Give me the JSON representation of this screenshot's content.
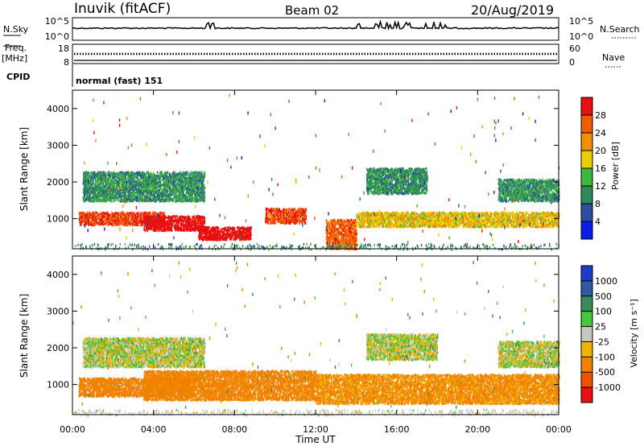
{
  "header": {
    "station": "Inuvik (fitACF)",
    "beam": "Beam 02",
    "date": "20/Aug/2019"
  },
  "top_panels": {
    "nsky_label": "N.Sky",
    "nsky_ticks": [
      "10^5",
      "10^0"
    ],
    "nsearch_label": "N.Search",
    "nsearch_ticks": [
      "10^5",
      "10^0"
    ],
    "freq_label": "Freq.",
    "freq_unit": "[MHz]",
    "freq_ticks": [
      "18",
      "8"
    ],
    "nave_label": "Nave",
    "nave_ticks": [
      "60",
      "0"
    ],
    "cpid_label": "CPID",
    "cpid_value": "normal (fast) 151"
  },
  "axes": {
    "ylabel": "Slant Range [km]",
    "xlabel": "Time UT",
    "y_ticks": [
      "1000",
      "2000",
      "3000",
      "4000"
    ],
    "x_ticks": [
      "00:00",
      "04:00",
      "08:00",
      "12:00",
      "16:00",
      "20:00",
      "00:00"
    ]
  },
  "power_colorbar": {
    "label": "Power [dB]",
    "ticks": [
      "4",
      "8",
      "12",
      "16",
      "20",
      "24",
      "28"
    ],
    "colors": [
      "#0a1ce8",
      "#2f4da0",
      "#2f8a5a",
      "#3cb83c",
      "#e8d000",
      "#f09000",
      "#f05a00",
      "#e81010"
    ]
  },
  "velocity_colorbar": {
    "label": "Velocity [m s⁻¹]",
    "ticks": [
      "1000",
      "500",
      "100",
      "25",
      "-25",
      "-100",
      "-500",
      "-1000"
    ],
    "colors": [
      "#1e3cc8",
      "#2f5aa0",
      "#3a8a5a",
      "#46c83c",
      "#c8c8be",
      "#f0b400",
      "#f08200",
      "#f05000",
      "#e81010"
    ]
  },
  "chart_data": [
    {
      "type": "heatmap",
      "title": "Power",
      "xlabel": "Time UT",
      "ylabel": "Slant Range [km]",
      "xlim": [
        0,
        24
      ],
      "ylim": [
        180,
        4500
      ],
      "colorbar": {
        "label": "Power [dB]",
        "range": [
          0,
          30
        ]
      },
      "features": [
        {
          "t": [
            0.3,
            4.5
          ],
          "range_km": [
            850,
            1200
          ],
          "power_db": 26
        },
        {
          "t": [
            3.5,
            6.5
          ],
          "range_km": [
            700,
            1100
          ],
          "power_db": 30
        },
        {
          "t": [
            6.2,
            8.8
          ],
          "range_km": [
            450,
            800
          ],
          "power_db": 30
        },
        {
          "t": [
            9.5,
            11.5
          ],
          "range_km": [
            900,
            1300
          ],
          "power_db": 26
        },
        {
          "t": [
            12.5,
            14.0
          ],
          "range_km": [
            200,
            1000
          ],
          "power_db": 24
        },
        {
          "t": [
            14.0,
            24.0
          ],
          "range_km": [
            800,
            1200
          ],
          "power_db": 18
        },
        {
          "t": [
            0.5,
            6.5
          ],
          "range_km": [
            1500,
            2300
          ],
          "power_db": 10
        },
        {
          "t": [
            14.5,
            17.5
          ],
          "range_km": [
            1700,
            2400
          ],
          "power_db": 10
        },
        {
          "t": [
            21.0,
            24.0
          ],
          "range_km": [
            1500,
            2100
          ],
          "power_db": 10
        }
      ]
    },
    {
      "type": "heatmap",
      "title": "Velocity",
      "xlabel": "Time UT",
      "ylabel": "Slant Range [km]",
      "xlim": [
        0,
        24
      ],
      "ylim": [
        180,
        4500
      ],
      "colorbar": {
        "label": "Velocity [m s⁻¹]",
        "range": [
          -1000,
          1000
        ]
      },
      "features": [
        {
          "t": [
            0.3,
            6.0
          ],
          "range_km": [
            700,
            1200
          ],
          "velocity": -300
        },
        {
          "t": [
            3.5,
            12.0
          ],
          "range_km": [
            600,
            1400
          ],
          "velocity": -200
        },
        {
          "t": [
            12.0,
            24.0
          ],
          "range_km": [
            500,
            1300
          ],
          "velocity": -150
        },
        {
          "t": [
            0.5,
            6.5
          ],
          "range_km": [
            1500,
            2300
          ],
          "velocity": 0
        },
        {
          "t": [
            14.5,
            18.0
          ],
          "range_km": [
            1700,
            2400
          ],
          "velocity": 0
        },
        {
          "t": [
            21.0,
            24.0
          ],
          "range_km": [
            1500,
            2200
          ],
          "velocity": 0
        }
      ]
    }
  ]
}
